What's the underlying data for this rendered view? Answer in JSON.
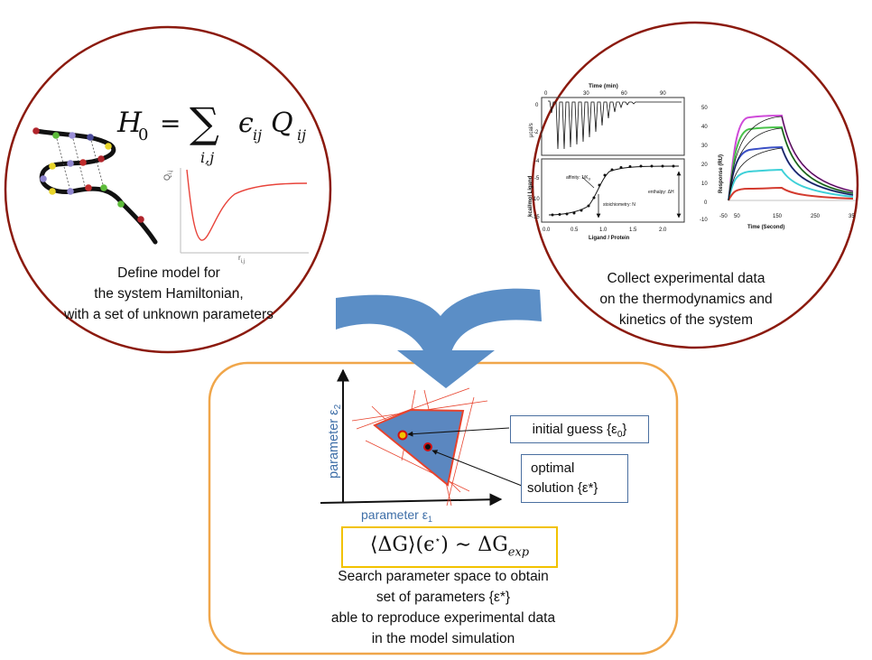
{
  "left_panel": {
    "equation": {
      "lhs": "H",
      "lhs_sub": "0",
      "eq": "=",
      "sum": "∑",
      "sum_sub": "i,j",
      "eps": "ϵ",
      "eps_sub": "ij",
      "q": "Q",
      "q_sub": "ij"
    },
    "plot_ylabel": "Q",
    "plot_ylabel_sub": "i,j",
    "plot_xlabel": "r",
    "plot_xlabel_sub": "i,j",
    "caption": [
      "Define model for",
      "the system Hamiltonian,",
      "with a set of unknown parameters"
    ]
  },
  "right_panel": {
    "itc": {
      "top_axis_label": "Time (min)",
      "top_ticks": [
        "0",
        "30",
        "60",
        "90"
      ],
      "top_ylabel": "μcal/s",
      "top_yticks": [
        "0",
        "-2"
      ],
      "bottom_ylabel": "kcal/mol Ligand",
      "bottom_yticks": [
        "-4",
        "-5",
        "-10",
        "-15"
      ],
      "xlabel": "Ligand / Protein",
      "xticks": [
        "0.0",
        "0.5",
        "1.0",
        "1.5",
        "2.0"
      ],
      "annot_affinity": "affinity: 1/K",
      "annot_affinity_sub": "d",
      "annot_stoich": "stoichiometry: N",
      "annot_enthalpy": "enthalpy: ΔH"
    },
    "spr": {
      "ylabel": "Response (RU)",
      "yticks": [
        "50",
        "40",
        "30",
        "20",
        "10",
        "0",
        "-10"
      ],
      "xlabel": "Time (Second)",
      "xticks": [
        "-50",
        "50",
        "150",
        "250",
        "35"
      ]
    },
    "caption": [
      "Collect experimental data",
      "on the thermodynamics and",
      "kinetics of the system"
    ]
  },
  "bottom_panel": {
    "axis_y_label": "parameter ε",
    "axis_y_sub": "2",
    "axis_x_label": "parameter ε",
    "axis_x_sub": "1",
    "initial_guess": "initial guess {ε",
    "initial_guess_sub": "0",
    "initial_guess_end": "}",
    "optimal_line1": "optimal",
    "optimal_line2": "solution {ε*}",
    "equation": {
      "open": "⟨ΔG⟩(ϵ",
      "star": "⋆",
      "close": ") ∼ ΔG",
      "sub": "exp"
    },
    "caption": [
      "Search parameter space to obtain",
      "set of parameters {ε*}",
      "able to reproduce  experimental data",
      "in the model simulation"
    ]
  },
  "colors": {
    "circle_border": "#8b1a0e",
    "box_border": "#f0a64a",
    "arrow": "#5b8ec6",
    "region_fill": "#5b87c0",
    "region_edge": "#e8432d",
    "highlight_box": "#f2c200",
    "label_blue": "#3f6fa8"
  }
}
